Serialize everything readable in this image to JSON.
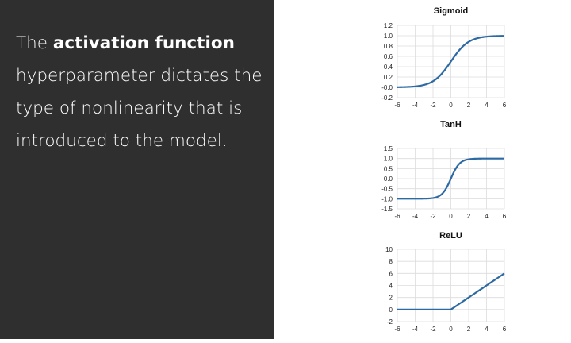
{
  "slide": {
    "text_prefix": "The ",
    "text_bold": "activation function",
    "text_suffix": " hyperparameter dictates the type of nonlinearity that is introduced to the model."
  },
  "colors": {
    "left_panel": "#2f2f30",
    "curve": "#2d6aa3",
    "grid": "#dcdcdc"
  },
  "chart_data": [
    {
      "type": "line",
      "title": "Sigmoid",
      "function": "sigmoid",
      "x": [
        -6,
        -4,
        -2,
        0,
        2,
        4,
        6
      ],
      "y": [
        0.0025,
        0.018,
        0.119,
        0.5,
        0.881,
        0.982,
        0.9975
      ],
      "xticks": [
        -6,
        -4,
        -2,
        0,
        2,
        4,
        6
      ],
      "yticks": [
        -0.2,
        0.0,
        0.2,
        0.4,
        0.6,
        0.8,
        1.0,
        1.2
      ],
      "ytick_labels": [
        "-0.2",
        "-0.0",
        "0.2",
        "0.4",
        "0.6",
        "0.8",
        "1.0",
        "1.2"
      ],
      "xlim": [
        -6,
        6
      ],
      "ylim": [
        -0.2,
        1.2
      ],
      "grid": true
    },
    {
      "type": "line",
      "title": "TanH",
      "function": "tanh",
      "x": [
        -6,
        -4,
        -2,
        0,
        2,
        4,
        6
      ],
      "y": [
        -1.0,
        -0.999,
        -0.964,
        0.0,
        0.964,
        0.999,
        1.0
      ],
      "xticks": [
        -6,
        -4,
        -2,
        0,
        2,
        4,
        6
      ],
      "yticks": [
        -1.5,
        -1.0,
        -0.5,
        0.0,
        0.5,
        1.0,
        1.5
      ],
      "ytick_labels": [
        "-1.5",
        "-1.0",
        "-0.5",
        "0.0",
        "0.5",
        "1.0",
        "1.5"
      ],
      "xlim": [
        -6,
        6
      ],
      "ylim": [
        -1.5,
        1.5
      ],
      "grid": true
    },
    {
      "type": "line",
      "title": "ReLU",
      "function": "relu",
      "x": [
        -6,
        -4,
        -2,
        0,
        2,
        4,
        6
      ],
      "y": [
        0,
        0,
        0,
        0,
        2,
        4,
        6
      ],
      "xticks": [
        -6,
        -4,
        -2,
        0,
        2,
        4,
        6
      ],
      "yticks": [
        -2,
        0,
        2,
        4,
        6,
        8,
        10
      ],
      "ytick_labels": [
        "-2",
        "0",
        "2",
        "4",
        "6",
        "8",
        "10"
      ],
      "xlim": [
        -6,
        6
      ],
      "ylim": [
        -2,
        10
      ],
      "grid": true
    }
  ]
}
